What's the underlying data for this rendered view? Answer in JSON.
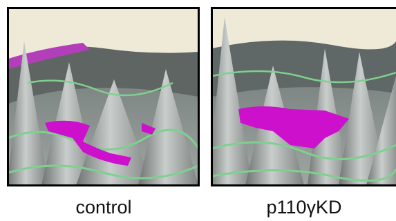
{
  "panels": [
    {
      "label": "control"
    },
    {
      "label": "p110γKD"
    }
  ]
}
